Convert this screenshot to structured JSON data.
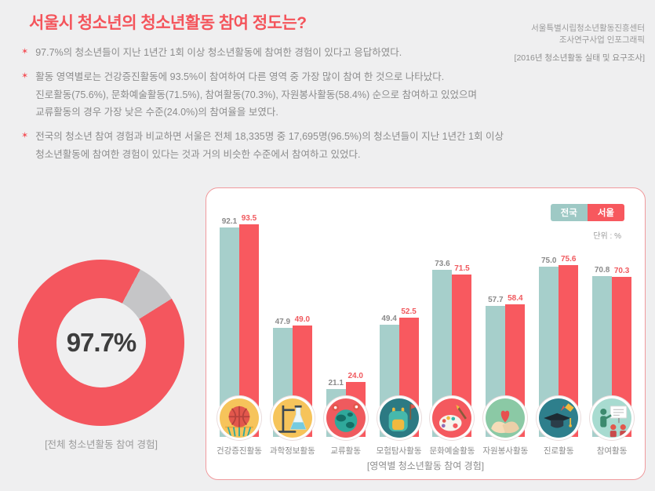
{
  "header": {
    "title": "서울시 청소년의 청소년활동 참여 정도는?",
    "source_line1": "서울특별시립청소년활동진흥센터",
    "source_line2": "조사연구사업 인포그래픽",
    "source_line3": "[2016년 청소년활동 실태 및 요구조사]"
  },
  "bullet_marker": "✶",
  "bullets": [
    {
      "lines": [
        "97.7%의 청소년들이 지난 1년간 1회 이상 청소년활동에 참여한 경험이 있다고 응답하였다."
      ]
    },
    {
      "lines": [
        "활동 영역별로는 건강증진활동에 93.5%이 참여하여 다른 영역 중 가장 많이 참여 한 것으로 나타났다.",
        "진로활동(75.6%), 문화예술활동(71.5%), 참여활동(70.3%), 자원봉사활동(58.4%) 순으로 참여하고 있었으며",
        "교류활동의 경우 가장 낮은 수준(24.0%)의 참여율을 보였다."
      ]
    },
    {
      "lines": [
        "전국의 청소년 참여 경험과 비교하면 서울은 전체 18,335명 중 17,695명(96.5%)의 청소년들이 지난 1년간 1회 이상",
        "청소년활동에 참여한 경험이 있다는 것과 거의 비슷한 수준에서 참여하고 있었다."
      ]
    }
  ],
  "chart_data": [
    {
      "type": "pie",
      "subtype": "donut",
      "title": "[전체 청소년활동 참여 경험]",
      "center_label": "97.7%",
      "values": [
        97.7,
        2.3
      ],
      "colors": [
        "#f4565e",
        "#c5c5c7"
      ]
    },
    {
      "type": "bar",
      "title": "[영역별 청소년활동 참여 경험]",
      "unit_label": "단위 : %",
      "ylim": [
        0,
        100
      ],
      "legend_position": "top-right",
      "categories": [
        "건강증진활동",
        "과학정보활동",
        "교류활동",
        "모험탐사활동",
        "문화예술활동",
        "자원봉사활동",
        "진로활동",
        "참여활동"
      ],
      "icons": [
        "basketball-icon",
        "science-flask-icon",
        "globe-icon",
        "backpack-icon",
        "palette-icon",
        "heart-hands-icon",
        "graduation-rocket-icon",
        "presentation-icon"
      ],
      "series": [
        {
          "name": "전국",
          "color": "#a6cfcb",
          "legend_color": "#9ec9c5",
          "values": [
            92.1,
            47.9,
            21.1,
            49.4,
            73.6,
            57.7,
            75.0,
            70.8
          ]
        },
        {
          "name": "서울",
          "color": "#f8595f",
          "legend_color": "#f7585e",
          "values": [
            93.5,
            49.0,
            24.0,
            52.5,
            71.5,
            58.4,
            75.6,
            70.3
          ]
        }
      ]
    }
  ],
  "colors": {
    "accent": "#f4545b",
    "background": "#efeff0",
    "body_text": "#8c8c8c"
  }
}
